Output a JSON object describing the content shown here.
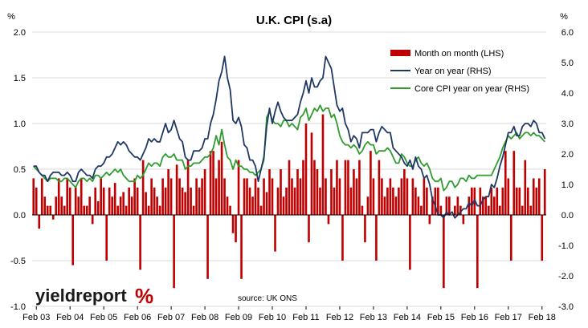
{
  "chart_data": {
    "type": "bar+line",
    "title": "U.K. CPI (s.a)",
    "y_left": {
      "unit": "%",
      "range": [
        -1.0,
        2.0
      ],
      "ticks": [
        "2.0",
        "1.5",
        "1.0",
        "0.5",
        "0.0",
        "-0.5",
        "-1.0"
      ]
    },
    "y_right": {
      "unit": "%",
      "range": [
        -3.0,
        6.0
      ],
      "ticks": [
        "6.0",
        "5.0",
        "4.0",
        "3.0",
        "2.0",
        "1.0",
        "0.0",
        "-1.0",
        "-2.0",
        "-3.0"
      ]
    },
    "x_ticks": [
      "Feb 03",
      "Feb 04",
      "Feb 05",
      "Feb 06",
      "Feb 07",
      "Feb 08",
      "Feb 09",
      "Feb 10",
      "Feb 11",
      "Feb 12",
      "Feb 13",
      "Feb 14",
      "Feb 15",
      "Feb 16",
      "Feb 17",
      "Feb 18"
    ],
    "start_date": "2003-01",
    "grid": true,
    "legend_position": "top-right",
    "source": "source: UK ONS",
    "series": [
      {
        "name": "Month on month (LHS)",
        "type": "bar",
        "axis": "left",
        "color": "#c00000",
        "values": [
          0.4,
          0.3,
          -0.15,
          0.4,
          0.2,
          0.1,
          0.1,
          -0.05,
          0.2,
          0.4,
          0.2,
          0.1,
          0.4,
          0.3,
          -0.55,
          0.3,
          0.2,
          0.4,
          0.1,
          0.1,
          0.2,
          -0.1,
          0.3,
          0.15,
          0.4,
          0.3,
          -0.5,
          0.3,
          0.2,
          0.35,
          0.1,
          0.2,
          0.25,
          0.1,
          0.3,
          0.2,
          0.4,
          0.3,
          -0.6,
          0.6,
          0.25,
          0.1,
          0.4,
          0.3,
          0.2,
          0.1,
          0.4,
          0.3,
          0.5,
          0.4,
          -0.8,
          0.55,
          0.4,
          0.3,
          0.25,
          0.6,
          0.3,
          0.1,
          0.4,
          0.3,
          0.4,
          0.5,
          -0.7,
          0.7,
          0.7,
          0.4,
          0.6,
          0.8,
          0.4,
          0.2,
          0.1,
          -0.2,
          -0.3,
          0.6,
          -0.7,
          0.4,
          0.4,
          0.3,
          0.2,
          0.4,
          0.3,
          0.1,
          0.4,
          0.25,
          0.5,
          0.4,
          -0.4,
          0.3,
          0.5,
          0.2,
          0.3,
          0.6,
          0.4,
          0.3,
          0.5,
          0.4,
          0.6,
          1.0,
          -0.3,
          0.9,
          0.6,
          0.5,
          0.3,
          1.1,
          0.4,
          -0.1,
          0.5,
          0.3,
          0.6,
          0.4,
          -0.5,
          0.6,
          0.6,
          0.3,
          0.5,
          0.4,
          0.6,
          0.1,
          -0.3,
          0.2,
          0.7,
          0.4,
          -0.5,
          0.6,
          0.4,
          0.2,
          0.3,
          0.4,
          0.3,
          0.2,
          0.3,
          0.4,
          0.5,
          0.4,
          -0.6,
          0.4,
          0.3,
          0.2,
          0.1,
          0.4,
          0.3,
          -0.1,
          0.2,
          0.3,
          0.3,
          0.1,
          -0.8,
          0.2,
          0.2,
          0.0,
          0.1,
          0.2,
          0.1,
          -0.1,
          0.0,
          0.2,
          0.3,
          0.3,
          -0.8,
          0.3,
          0.2,
          0.2,
          0.1,
          0.3,
          0.2,
          0.3,
          0.1,
          0.3,
          0.7,
          0.4,
          -0.5,
          0.7,
          0.3,
          0.3,
          0.1,
          0.6,
          0.3,
          0.1,
          0.4,
          0.3,
          0.4,
          -0.5,
          0.5
        ]
      },
      {
        "name": "Year on year (RHS)",
        "type": "line",
        "axis": "right",
        "color": "#1f3864",
        "values": [
          1.6,
          1.6,
          1.4,
          1.3,
          1.3,
          1.1,
          1.3,
          1.4,
          1.4,
          1.4,
          1.3,
          1.3,
          1.4,
          1.3,
          1.1,
          1.1,
          1.4,
          1.5,
          1.4,
          1.3,
          1.3,
          1.2,
          1.5,
          1.6,
          1.6,
          1.7,
          1.9,
          1.9,
          2.0,
          2.2,
          2.4,
          2.3,
          2.4,
          2.3,
          2.1,
          2.0,
          1.9,
          1.9,
          1.8,
          2.0,
          2.2,
          2.5,
          2.4,
          2.5,
          2.4,
          2.4,
          2.7,
          3.0,
          2.7,
          2.8,
          3.1,
          2.8,
          2.5,
          2.4,
          1.9,
          1.8,
          1.8,
          2.1,
          2.1,
          2.1,
          2.2,
          2.5,
          2.5,
          3.0,
          3.3,
          3.8,
          4.4,
          4.7,
          5.2,
          4.5,
          4.1,
          3.1,
          3.0,
          3.2,
          2.9,
          2.3,
          2.2,
          1.8,
          1.8,
          1.6,
          1.1,
          1.5,
          1.9,
          2.9,
          3.5,
          3.0,
          3.4,
          3.7,
          3.4,
          3.2,
          3.1,
          3.1,
          3.1,
          3.2,
          3.3,
          3.7,
          4.0,
          4.4,
          4.0,
          4.5,
          4.2,
          4.2,
          4.4,
          4.5,
          5.2,
          5.0,
          4.8,
          4.2,
          3.6,
          3.4,
          3.5,
          3.0,
          2.8,
          2.4,
          2.6,
          2.5,
          2.2,
          2.7,
          2.7,
          2.7,
          2.8,
          2.8,
          2.4,
          2.7,
          2.9,
          2.8,
          2.7,
          2.7,
          2.2,
          2.1,
          2.0,
          1.9,
          1.7,
          1.6,
          1.8,
          1.5,
          1.9,
          1.6,
          1.5,
          1.2,
          1.3,
          1.0,
          0.5,
          0.3,
          0.0,
          0.0,
          -0.1,
          0.1,
          0.0,
          0.1,
          -0.1,
          0.0,
          0.1,
          0.2,
          0.2,
          0.4,
          0.3,
          0.5,
          0.3,
          0.3,
          0.5,
          0.6,
          0.6,
          1.0,
          0.9,
          1.2,
          1.6,
          1.9,
          2.3,
          2.7,
          2.7,
          2.9,
          2.6,
          2.6,
          2.9,
          3.0,
          3.0,
          2.9,
          3.1,
          3.0,
          2.7,
          2.7,
          2.5
        ]
      },
      {
        "name": "Core CPI year on year (RHS)",
        "type": "line",
        "axis": "right",
        "color": "#2e9c2e",
        "values": [
          1.6,
          1.5,
          1.4,
          1.3,
          1.2,
          1.1,
          1.2,
          1.2,
          1.2,
          1.1,
          1.1,
          1.2,
          1.2,
          1.1,
          1.0,
          0.9,
          1.1,
          1.2,
          1.2,
          1.1,
          1.2,
          1.1,
          1.3,
          1.3,
          1.2,
          1.3,
          1.4,
          1.3,
          1.4,
          1.5,
          1.4,
          1.5,
          1.3,
          1.2,
          1.1,
          1.1,
          1.1,
          1.3,
          1.2,
          1.3,
          1.5,
          1.7,
          1.6,
          1.7,
          1.7,
          1.6,
          1.9,
          2.0,
          1.9,
          1.9,
          2.0,
          1.8,
          1.8,
          1.8,
          1.5,
          1.6,
          1.6,
          1.7,
          1.7,
          1.7,
          1.8,
          1.9,
          1.9,
          2.0,
          2.2,
          2.6,
          2.3,
          2.8,
          2.3,
          1.9,
          1.8,
          1.5,
          1.8,
          1.6,
          1.6,
          1.5,
          1.5,
          1.4,
          1.4,
          1.3,
          1.4,
          1.5,
          1.8,
          3.2,
          3.4,
          3.1,
          3.0,
          3.0,
          2.9,
          3.1,
          3.1,
          2.9,
          3.0,
          2.9,
          2.8,
          3.2,
          3.3,
          3.5,
          3.1,
          3.3,
          3.5,
          3.4,
          3.6,
          3.4,
          3.5,
          3.5,
          3.2,
          3.3,
          3.0,
          2.6,
          2.4,
          2.3,
          2.3,
          2.2,
          2.3,
          2.2,
          2.0,
          2.1,
          2.3,
          2.4,
          2.3,
          2.3,
          2.0,
          2.1,
          2.1,
          2.1,
          2.2,
          2.1,
          1.9,
          1.7,
          1.7,
          2.0,
          1.9,
          1.7,
          1.6,
          1.6,
          1.8,
          1.9,
          1.7,
          1.6,
          1.7,
          1.5,
          1.2,
          1.1,
          1.1,
          1.2,
          0.8,
          0.9,
          1.1,
          1.1,
          0.9,
          1.0,
          1.2,
          1.2,
          1.1,
          1.3,
          1.2,
          1.2,
          1.3,
          1.3,
          1.3,
          1.3,
          1.3,
          1.3,
          1.5,
          1.7,
          1.9,
          2.2,
          2.4,
          2.6,
          2.5,
          2.6,
          2.7,
          2.5,
          2.6,
          2.7,
          2.7,
          2.6,
          2.7,
          2.6,
          2.6,
          2.5,
          2.4
        ]
      }
    ]
  },
  "logo": {
    "text": "yieldreport",
    "mark": "%",
    "color": "#c00000"
  }
}
